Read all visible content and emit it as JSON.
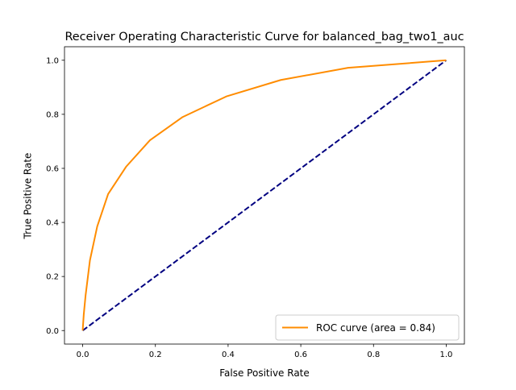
{
  "chart_data": {
    "type": "line",
    "title": "Receiver Operating Characteristic Curve for balanced_bag_two1_auc",
    "xlabel": "False Positive Rate",
    "ylabel": "True Positive Rate",
    "xlim": [
      -0.05,
      1.05
    ],
    "ylim": [
      -0.05,
      1.05
    ],
    "xticks": [
      0.0,
      0.2,
      0.4,
      0.6,
      0.8,
      1.0
    ],
    "yticks": [
      0.0,
      0.2,
      0.4,
      0.6,
      0.8,
      1.0
    ],
    "xtick_labels": [
      "0.0",
      "0.2",
      "0.4",
      "0.6",
      "0.8",
      "1.0"
    ],
    "ytick_labels": [
      "0.0",
      "0.2",
      "0.4",
      "0.6",
      "0.8",
      "1.0"
    ],
    "grid": false,
    "legend_position": "bottom-right",
    "series": [
      {
        "name": "ROC curve (area = 0.84)",
        "color": "#ff8c00",
        "style": "solid",
        "x": [
          0.0,
          0.003,
          0.008,
          0.02,
          0.04,
          0.07,
          0.12,
          0.185,
          0.275,
          0.395,
          0.545,
          0.73,
          1.0
        ],
        "y": [
          0.0,
          0.06,
          0.13,
          0.26,
          0.385,
          0.505,
          0.607,
          0.704,
          0.79,
          0.866,
          0.927,
          0.972,
          1.0
        ]
      },
      {
        "name": "",
        "color": "#000080",
        "style": "dashed",
        "x": [
          0.0,
          1.0
        ],
        "y": [
          0.0,
          1.0
        ]
      }
    ]
  }
}
